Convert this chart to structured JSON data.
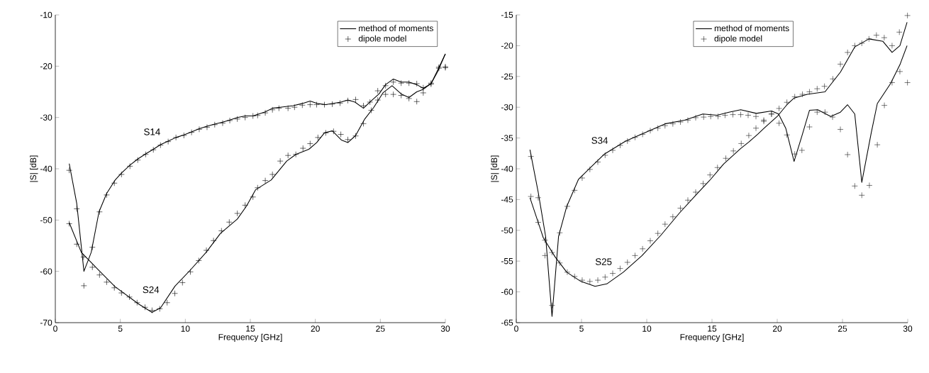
{
  "chart_data": [
    {
      "type": "line",
      "xlabel": "Frequency [GHz]",
      "ylabel": "|S|  [dB]",
      "xlim": [
        0,
        30
      ],
      "ylim": [
        -70,
        -10
      ],
      "xticks": [
        0,
        5,
        10,
        15,
        20,
        25,
        30
      ],
      "yticks": [
        -70,
        -60,
        -50,
        -40,
        -30,
        -20,
        -10
      ],
      "grid": false,
      "legend": "top right",
      "annotations": [
        "S14",
        "S24"
      ],
      "series": [
        {
          "name": "method of moments",
          "color": "#000000",
          "marker": "none",
          "line_style": "solid",
          "x": [
            1.07,
            1.65,
            2.2,
            2.76,
            3.36,
            3.95,
            4.6,
            5.1,
            5.74,
            6.34,
            6.95,
            7.54,
            8.09,
            8.68,
            9.28,
            9.89,
            10.48,
            11.07,
            11.67,
            12.26,
            12.87,
            13.42,
            14.0,
            14.6,
            15.2,
            16.15,
            16.7,
            17.3,
            18.3,
            18.96,
            19.6,
            20.2,
            20.8,
            21.96,
            22.5,
            23.05,
            23.7,
            24.2,
            24.9,
            25.4,
            26.0,
            26.6,
            27.2,
            27.8,
            28.3,
            28.9,
            29.4,
            30
          ],
          "values": [
            -39.0,
            -46.8,
            -60.0,
            -56.3,
            -48.4,
            -44.8,
            -42.2,
            -40.8,
            -39.3,
            -38.1,
            -37.1,
            -36.2,
            -35.3,
            -34.6,
            -33.9,
            -33.4,
            -32.8,
            -32.2,
            -31.7,
            -31.3,
            -30.9,
            -30.5,
            -30.0,
            -29.7,
            -29.7,
            -28.9,
            -28.2,
            -28.0,
            -27.7,
            -27.3,
            -26.8,
            -27.3,
            -27.5,
            -27.0,
            -26.6,
            -27.0,
            -28.2,
            -27.0,
            -25.4,
            -23.6,
            -22.5,
            -23.1,
            -23.1,
            -23.6,
            -24.3,
            -23.4,
            -20.8,
            -17.6
          ]
        },
        {
          "color": "#000000",
          "marker": "none",
          "line_style": "solid",
          "x": [
            1.07,
            2.0,
            3.3,
            4.6,
            6.43,
            7.44,
            8.1,
            9.2,
            10.4,
            11.6,
            12.7,
            14.0,
            14.7,
            15.4,
            16.6,
            17.8,
            18.5,
            19.5,
            20.1,
            20.7,
            21.3,
            22.0,
            22.5,
            23.1,
            23.8,
            24.5,
            25.2,
            25.9,
            26.6,
            27.2,
            27.8,
            28.3,
            28.9,
            29.4,
            30
          ],
          "values": [
            -50.5,
            -56.3,
            -59.7,
            -63.0,
            -66.4,
            -68.0,
            -67.1,
            -62.9,
            -59.7,
            -56.3,
            -52.6,
            -49.8,
            -47.3,
            -44.1,
            -42.2,
            -38.5,
            -37.2,
            -36.2,
            -34.9,
            -33.0,
            -32.6,
            -34.4,
            -34.9,
            -33.5,
            -30.3,
            -28.0,
            -25.2,
            -23.8,
            -25.4,
            -26.1,
            -25.0,
            -24.5,
            -23.4,
            -21.1,
            -17.6
          ]
        },
        {
          "name": "dipole model",
          "type": "scatter",
          "color": "#000000",
          "marker": "cross",
          "x": [
            1.07,
            1.65,
            2.2,
            2.85,
            3.4,
            3.95,
            4.54,
            5.09,
            5.74,
            6.34,
            6.95,
            7.54,
            8.09,
            8.68,
            9.28,
            9.89,
            10.48,
            11.07,
            11.67,
            12.26,
            12.87,
            13.42,
            14.0,
            14.6,
            15.2,
            15.56,
            16.15,
            16.7,
            17.2,
            17.9,
            18.4,
            19.0,
            19.6,
            20.1,
            20.7,
            21.3,
            21.9,
            22.5,
            23.1,
            23.7,
            24.2,
            24.8,
            25.4,
            26.0,
            26.6,
            27.2,
            27.8,
            28.3,
            28.9,
            29.5,
            30.0
          ],
          "values": [
            -40.3,
            -47.8,
            -62.8,
            -55.3,
            -48.4,
            -45.1,
            -42.8,
            -41.1,
            -39.5,
            -38.3,
            -37.2,
            -36.3,
            -35.4,
            -34.7,
            -33.9,
            -33.5,
            -32.9,
            -32.3,
            -31.9,
            -31.4,
            -31.1,
            -30.6,
            -30.3,
            -30.0,
            -29.7,
            -29.6,
            -29.1,
            -28.5,
            -28.2,
            -28.2,
            -28.0,
            -27.6,
            -27.5,
            -27.5,
            -27.5,
            -27.4,
            -27.2,
            -26.7,
            -26.5,
            -27.7,
            -27.0,
            -24.8,
            -23.8,
            -23.1,
            -23.3,
            -23.3,
            -23.4,
            -24.2,
            -23.3,
            -20.2,
            -20.1
          ]
        },
        {
          "type": "scatter",
          "color": "#000000",
          "marker": "cross",
          "x": [
            1.07,
            1.65,
            2.17,
            2.85,
            3.4,
            3.95,
            4.54,
            5.09,
            5.7,
            6.29,
            6.9,
            7.44,
            8.03,
            8.6,
            9.19,
            9.78,
            10.39,
            11.03,
            11.62,
            12.17,
            12.78,
            13.38,
            14.0,
            14.6,
            15.2,
            15.56,
            16.15,
            16.7,
            17.3,
            17.9,
            18.5,
            19.05,
            19.6,
            20.2,
            20.8,
            21.4,
            21.96,
            22.5,
            23.1,
            23.7,
            24.3,
            24.8,
            25.4,
            26.0,
            26.6,
            27.2,
            27.8,
            28.3,
            28.9,
            29.5,
            30.0
          ],
          "values": [
            -50.7,
            -54.7,
            -57.2,
            -59.2,
            -60.7,
            -62.1,
            -63.2,
            -64.2,
            -65.0,
            -66.1,
            -67.0,
            -67.6,
            -67.3,
            -66.1,
            -64.3,
            -62.2,
            -60.1,
            -57.9,
            -55.9,
            -54.0,
            -52.1,
            -50.4,
            -48.7,
            -47.1,
            -45.5,
            -43.7,
            -42.3,
            -41.1,
            -38.5,
            -37.4,
            -37.2,
            -36.0,
            -35.1,
            -33.9,
            -33.0,
            -32.7,
            -33.3,
            -34.3,
            -33.6,
            -31.2,
            -28.6,
            -26.6,
            -25.5,
            -25.5,
            -25.7,
            -26.3,
            -26.9,
            -25.2,
            -23.5,
            -20.4,
            -20.3
          ]
        }
      ]
    },
    {
      "type": "line",
      "xlabel": "Frequency [GHz]",
      "ylabel": "|S|  [dB]",
      "xlim": [
        0,
        30
      ],
      "ylim": [
        -65,
        -15
      ],
      "xticks": [
        0,
        5,
        10,
        15,
        20,
        25,
        30
      ],
      "yticks": [
        -65,
        -60,
        -55,
        -50,
        -45,
        -40,
        -35,
        -30,
        -25,
        -20,
        -15
      ],
      "grid": false,
      "legend": "top",
      "annotations": [
        "S34",
        "S25"
      ],
      "series": [
        {
          "name": "method of moments",
          "color": "#000000",
          "marker": "none",
          "line_style": "solid",
          "x": [
            1.05,
            1.68,
            2.25,
            2.74,
            3.24,
            3.87,
            4.77,
            5.68,
            6.76,
            8.38,
            10.0,
            11.4,
            12.9,
            14.3,
            15.4,
            16.3,
            17.2,
            18.4,
            19.56,
            20.1,
            20.65,
            21.29,
            21.9,
            22.47,
            23.1,
            24.1,
            24.84,
            25.39,
            25.94,
            26.48,
            27.2,
            27.67,
            28.67,
            29.4,
            29.95
          ],
          "values": [
            -36.9,
            -43.8,
            -51.0,
            -64.0,
            -51.0,
            -46.1,
            -41.7,
            -39.8,
            -37.6,
            -35.5,
            -34.0,
            -32.7,
            -32.1,
            -31.1,
            -31.3,
            -30.8,
            -30.4,
            -31.0,
            -30.6,
            -31.1,
            -33.4,
            -38.8,
            -34.6,
            -30.5,
            -30.4,
            -31.5,
            -30.8,
            -29.6,
            -31.1,
            -42.2,
            -34.2,
            -29.4,
            -26.2,
            -23.1,
            -20.0
          ]
        },
        {
          "color": "#000000",
          "marker": "none",
          "line_style": "solid",
          "x": [
            1.05,
            2.07,
            2.97,
            3.87,
            4.95,
            6.04,
            6.94,
            8.2,
            9.64,
            11.08,
            12.5,
            13.8,
            14.9,
            15.9,
            17.2,
            17.8,
            18.5,
            19.0,
            20.0,
            20.74,
            21.3,
            22.3,
            23.66,
            24.84,
            25.94,
            27.03,
            28.1,
            28.8,
            29.4,
            29.95
          ],
          "values": [
            -44.7,
            -51.2,
            -54.3,
            -56.8,
            -58.3,
            -59.1,
            -58.7,
            -56.8,
            -54.1,
            -50.8,
            -47.2,
            -44.2,
            -41.7,
            -39.2,
            -36.7,
            -35.7,
            -34.4,
            -33.4,
            -31.5,
            -29.6,
            -28.5,
            -27.9,
            -27.5,
            -24.3,
            -20.2,
            -18.9,
            -19.3,
            -21.1,
            -20.0,
            -16.2
          ]
        },
        {
          "name": "dipole model",
          "type": "scatter",
          "color": "#202020",
          "marker": "cross",
          "x": [
            1.12,
            1.68,
            2.2,
            2.74,
            3.33,
            3.91,
            4.47,
            5.05,
            5.64,
            6.25,
            6.81,
            7.39,
            7.96,
            8.52,
            9.1,
            9.68,
            10.27,
            10.85,
            11.4,
            12.0,
            12.58,
            13.15,
            13.75,
            14.36,
            14.9,
            15.46,
            16.0,
            16.6,
            17.2,
            17.77,
            18.37,
            18.97,
            19.56,
            20.14,
            20.74,
            21.34,
            21.89,
            22.47,
            23.06,
            23.66,
            24.24,
            24.84,
            25.39,
            25.94,
            26.48,
            27.06,
            27.67,
            28.21,
            28.8,
            29.4,
            29.98
          ],
          "values": [
            -38.0,
            -44.7,
            -54.1,
            -62.2,
            -50.4,
            -46.1,
            -43.5,
            -41.5,
            -40.1,
            -38.9,
            -37.8,
            -37.0,
            -36.2,
            -35.5,
            -34.9,
            -34.4,
            -33.8,
            -33.4,
            -33.0,
            -32.7,
            -32.4,
            -32.1,
            -31.7,
            -31.6,
            -31.5,
            -31.5,
            -31.3,
            -31.2,
            -31.2,
            -31.3,
            -31.5,
            -32.1,
            -31.1,
            -32.6,
            -34.5,
            -37.6,
            -37.0,
            -33.2,
            -30.8,
            -30.8,
            -31.6,
            -33.6,
            -37.7,
            -42.8,
            -44.3,
            -42.7,
            -36.1,
            -29.7,
            -26.0,
            -24.2,
            -26.0
          ]
        },
        {
          "type": "scatter",
          "color": "#202020",
          "marker": "cross",
          "x": [
            1.12,
            1.68,
            2.2,
            2.74,
            3.33,
            3.91,
            4.47,
            5.05,
            5.64,
            6.25,
            6.81,
            7.39,
            7.96,
            8.52,
            9.1,
            9.68,
            10.27,
            10.85,
            11.4,
            12.0,
            12.58,
            13.15,
            13.75,
            14.32,
            14.85,
            15.42,
            16.06,
            16.64,
            17.24,
            17.82,
            18.37,
            18.97,
            19.56,
            20.14,
            20.74,
            21.34,
            21.93,
            22.47,
            23.06,
            23.62,
            24.26,
            24.84,
            25.39,
            25.94,
            26.48,
            27.03,
            27.6,
            28.2,
            28.8,
            29.36,
            29.98
          ],
          "values": [
            -44.5,
            -48.7,
            -51.6,
            -53.6,
            -55.3,
            -56.8,
            -57.5,
            -58.1,
            -58.3,
            -58.1,
            -57.6,
            -57.0,
            -56.2,
            -55.2,
            -54.1,
            -53.0,
            -51.7,
            -50.5,
            -49.0,
            -47.8,
            -46.4,
            -45.1,
            -43.8,
            -42.4,
            -41.0,
            -39.8,
            -38.3,
            -37.1,
            -35.9,
            -34.6,
            -33.4,
            -32.3,
            -31.1,
            -30.2,
            -29.2,
            -28.3,
            -27.9,
            -27.5,
            -27.0,
            -26.6,
            -25.4,
            -23.0,
            -21.1,
            -20.0,
            -19.6,
            -18.9,
            -18.3,
            -18.7,
            -20.0,
            -17.8,
            -15.1
          ]
        }
      ]
    }
  ]
}
